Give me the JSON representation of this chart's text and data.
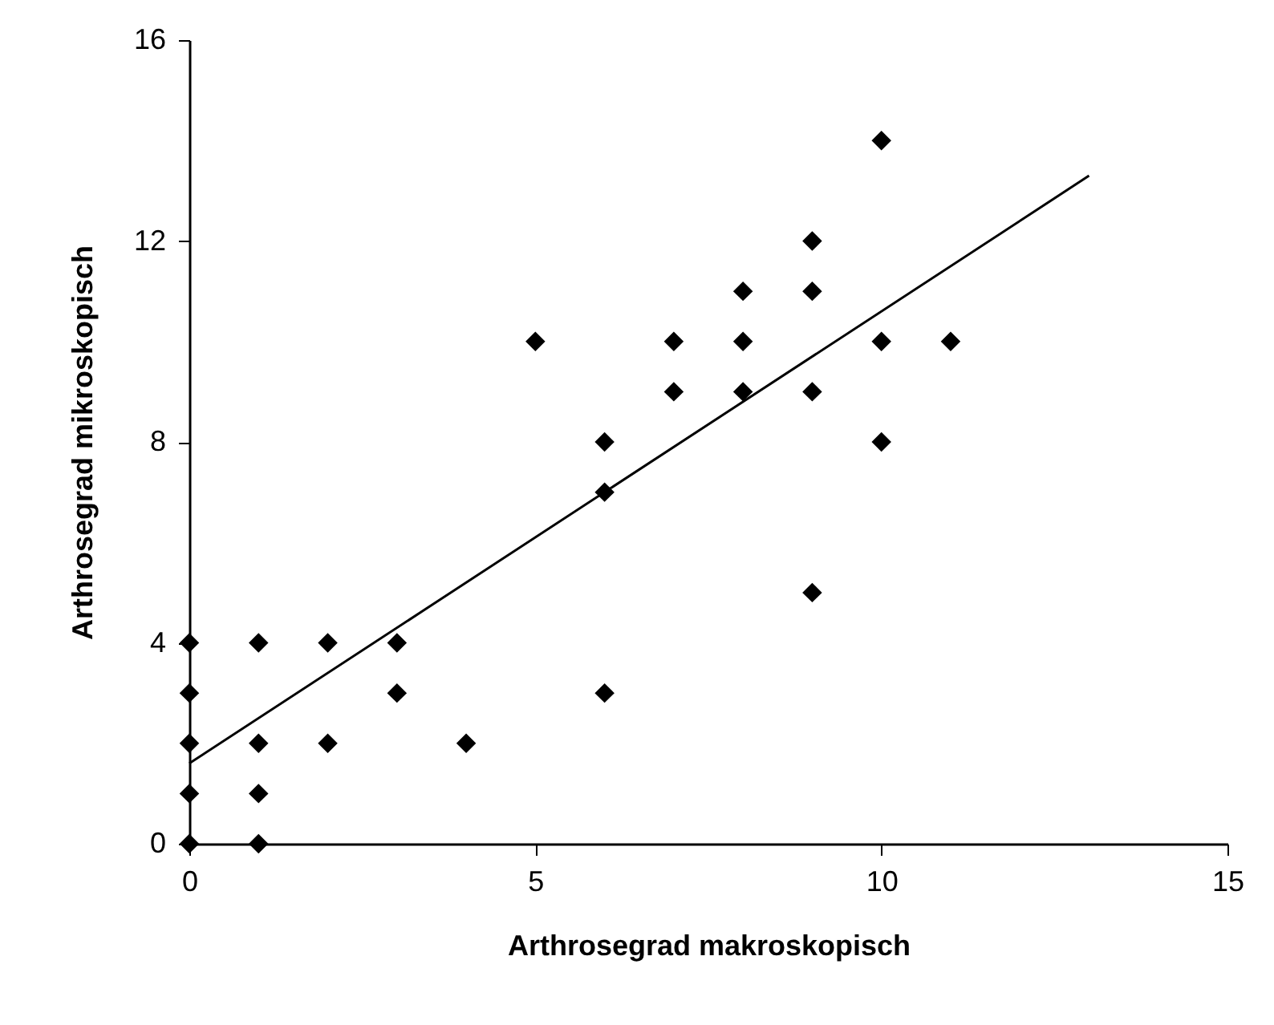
{
  "chart_data": {
    "type": "scatter",
    "xlabel": "Arthrosegrad makroskopisch",
    "ylabel": "Arthrosegrad mikroskopisch",
    "xlim": [
      0,
      15
    ],
    "xticks": [
      0,
      5,
      10,
      15
    ],
    "ylim": [
      0,
      16
    ],
    "yticks": [
      0,
      4,
      8,
      12,
      16
    ],
    "marker": "diamond",
    "series": [
      {
        "color": "#000000",
        "x": [
          0,
          0,
          0,
          0,
          0,
          1,
          1,
          1,
          1,
          2,
          2,
          3,
          3,
          4,
          5,
          6,
          6,
          6,
          7,
          7,
          8,
          8,
          8,
          9,
          9,
          9,
          9,
          10,
          10,
          10,
          11
        ],
        "values": [
          0,
          1,
          2,
          3,
          4,
          0,
          1,
          2,
          4,
          2,
          4,
          3,
          4,
          2,
          10,
          3,
          7,
          8,
          9,
          10,
          9,
          10,
          11,
          5,
          9,
          11,
          12,
          8,
          10,
          14,
          10
        ]
      },
      {
        "type": "line",
        "marker": "none",
        "color": "#000000",
        "x": [
          0,
          13
        ],
        "values": [
          1.6,
          13.3
        ]
      }
    ]
  }
}
